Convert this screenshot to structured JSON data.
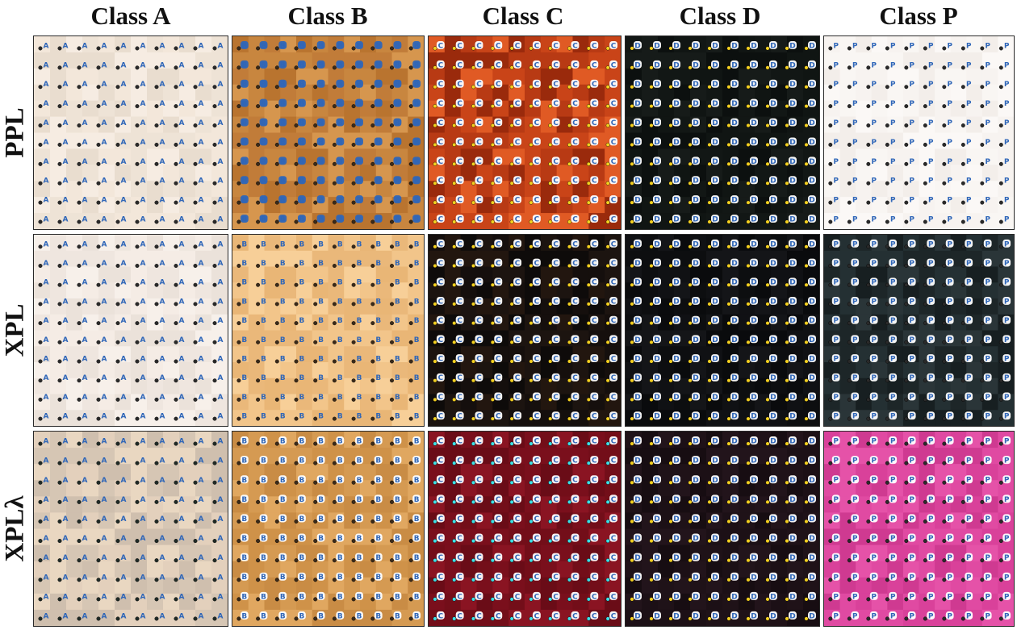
{
  "columns": [
    {
      "label": "Class A",
      "letter": "A"
    },
    {
      "label": "Class B",
      "letter": "B"
    },
    {
      "label": "Class C",
      "letter": "C"
    },
    {
      "label": "Class D",
      "letter": "D"
    },
    {
      "label": "Class P",
      "letter": "P"
    }
  ],
  "rows": [
    {
      "label": "PPL"
    },
    {
      "label": "XPL"
    },
    {
      "label": "XPLλ"
    }
  ],
  "tiles": [
    [
      {
        "letter": "A",
        "bg": [
          "#f3e7da",
          "#eee3d6",
          "#f6ece2",
          "#e9ddcf"
        ],
        "marker": "#2f66b8",
        "dot": "#2a2a2a",
        "style": "light"
      },
      {
        "letter": "B",
        "bg": [
          "#c8863f",
          "#b9742f",
          "#d6964e",
          "#c17c39"
        ],
        "marker": "#2f66b8",
        "dot": "#3a2a1a",
        "style": "badge"
      },
      {
        "letter": "C",
        "bg": [
          "#b83a14",
          "#9a2a0c",
          "#e05a24",
          "#c94418"
        ],
        "marker": "#ffffff",
        "dot": "#f4d020",
        "style": "badge"
      },
      {
        "letter": "D",
        "bg": [
          "#101513",
          "#0c100f",
          "#161b19",
          "#121715"
        ],
        "marker": "#ffffff",
        "dot": "#f4d020",
        "style": "badge"
      },
      {
        "letter": "P",
        "bg": [
          "#f7f3f0",
          "#fbf8f6",
          "#f3eeea",
          "#f9f6f3"
        ],
        "marker": "#2f66b8",
        "dot": "#2a2a2a",
        "style": "light"
      }
    ],
    [
      {
        "letter": "A",
        "bg": [
          "#f5ece5",
          "#efe6df",
          "#f7f0ea",
          "#ebe2da"
        ],
        "marker": "#2f66b8",
        "dot": "#2a2a2a",
        "style": "light"
      },
      {
        "letter": "B",
        "bg": [
          "#f2c58a",
          "#eab87a",
          "#f7cf98",
          "#e9b676"
        ],
        "marker": "#2f66b8",
        "dot": "#3a2a1a",
        "style": "light"
      },
      {
        "letter": "C",
        "bg": [
          "#150f0d",
          "#1c1410",
          "#0e0b0a",
          "#22160f"
        ],
        "marker": "#ffffff",
        "dot": "#f4d020",
        "style": "badge"
      },
      {
        "letter": "D",
        "bg": [
          "#0d0e10",
          "#101114",
          "#0a0b0d",
          "#141518"
        ],
        "marker": "#ffffff",
        "dot": "#f4d020",
        "style": "badge"
      },
      {
        "letter": "P",
        "bg": [
          "#1d2628",
          "#243033",
          "#171f21",
          "#2a3538"
        ],
        "marker": "#ffffff",
        "dot": "#2a2a2a",
        "style": "badge"
      }
    ],
    [
      {
        "letter": "A",
        "bg": [
          "#e3d0bc",
          "#cfbfae",
          "#e9d7c1",
          "#d6c6b4"
        ],
        "marker": "#2f66b8",
        "dot": "#1f2a26",
        "style": "light"
      },
      {
        "letter": "B",
        "bg": [
          "#d59a52",
          "#c98c45",
          "#e0a760",
          "#cf9249"
        ],
        "marker": "#ffffff",
        "dot": "#3a2a1a",
        "style": "badge"
      },
      {
        "letter": "C",
        "bg": [
          "#7a0f1c",
          "#6a0c17",
          "#8a1422",
          "#730e19"
        ],
        "marker": "#ffffff",
        "dot": "#3ee0e6",
        "style": "badge"
      },
      {
        "letter": "D",
        "bg": [
          "#1c1016",
          "#22141b",
          "#170d12",
          "#1f1218"
        ],
        "marker": "#ffffff",
        "dot": "#f4d020",
        "style": "badge"
      },
      {
        "letter": "P",
        "bg": [
          "#d9419a",
          "#e04aa2",
          "#cf3a91",
          "#e552a8"
        ],
        "marker": "#ffffff",
        "dot": "#2a2a2a",
        "style": "badge"
      }
    ]
  ]
}
